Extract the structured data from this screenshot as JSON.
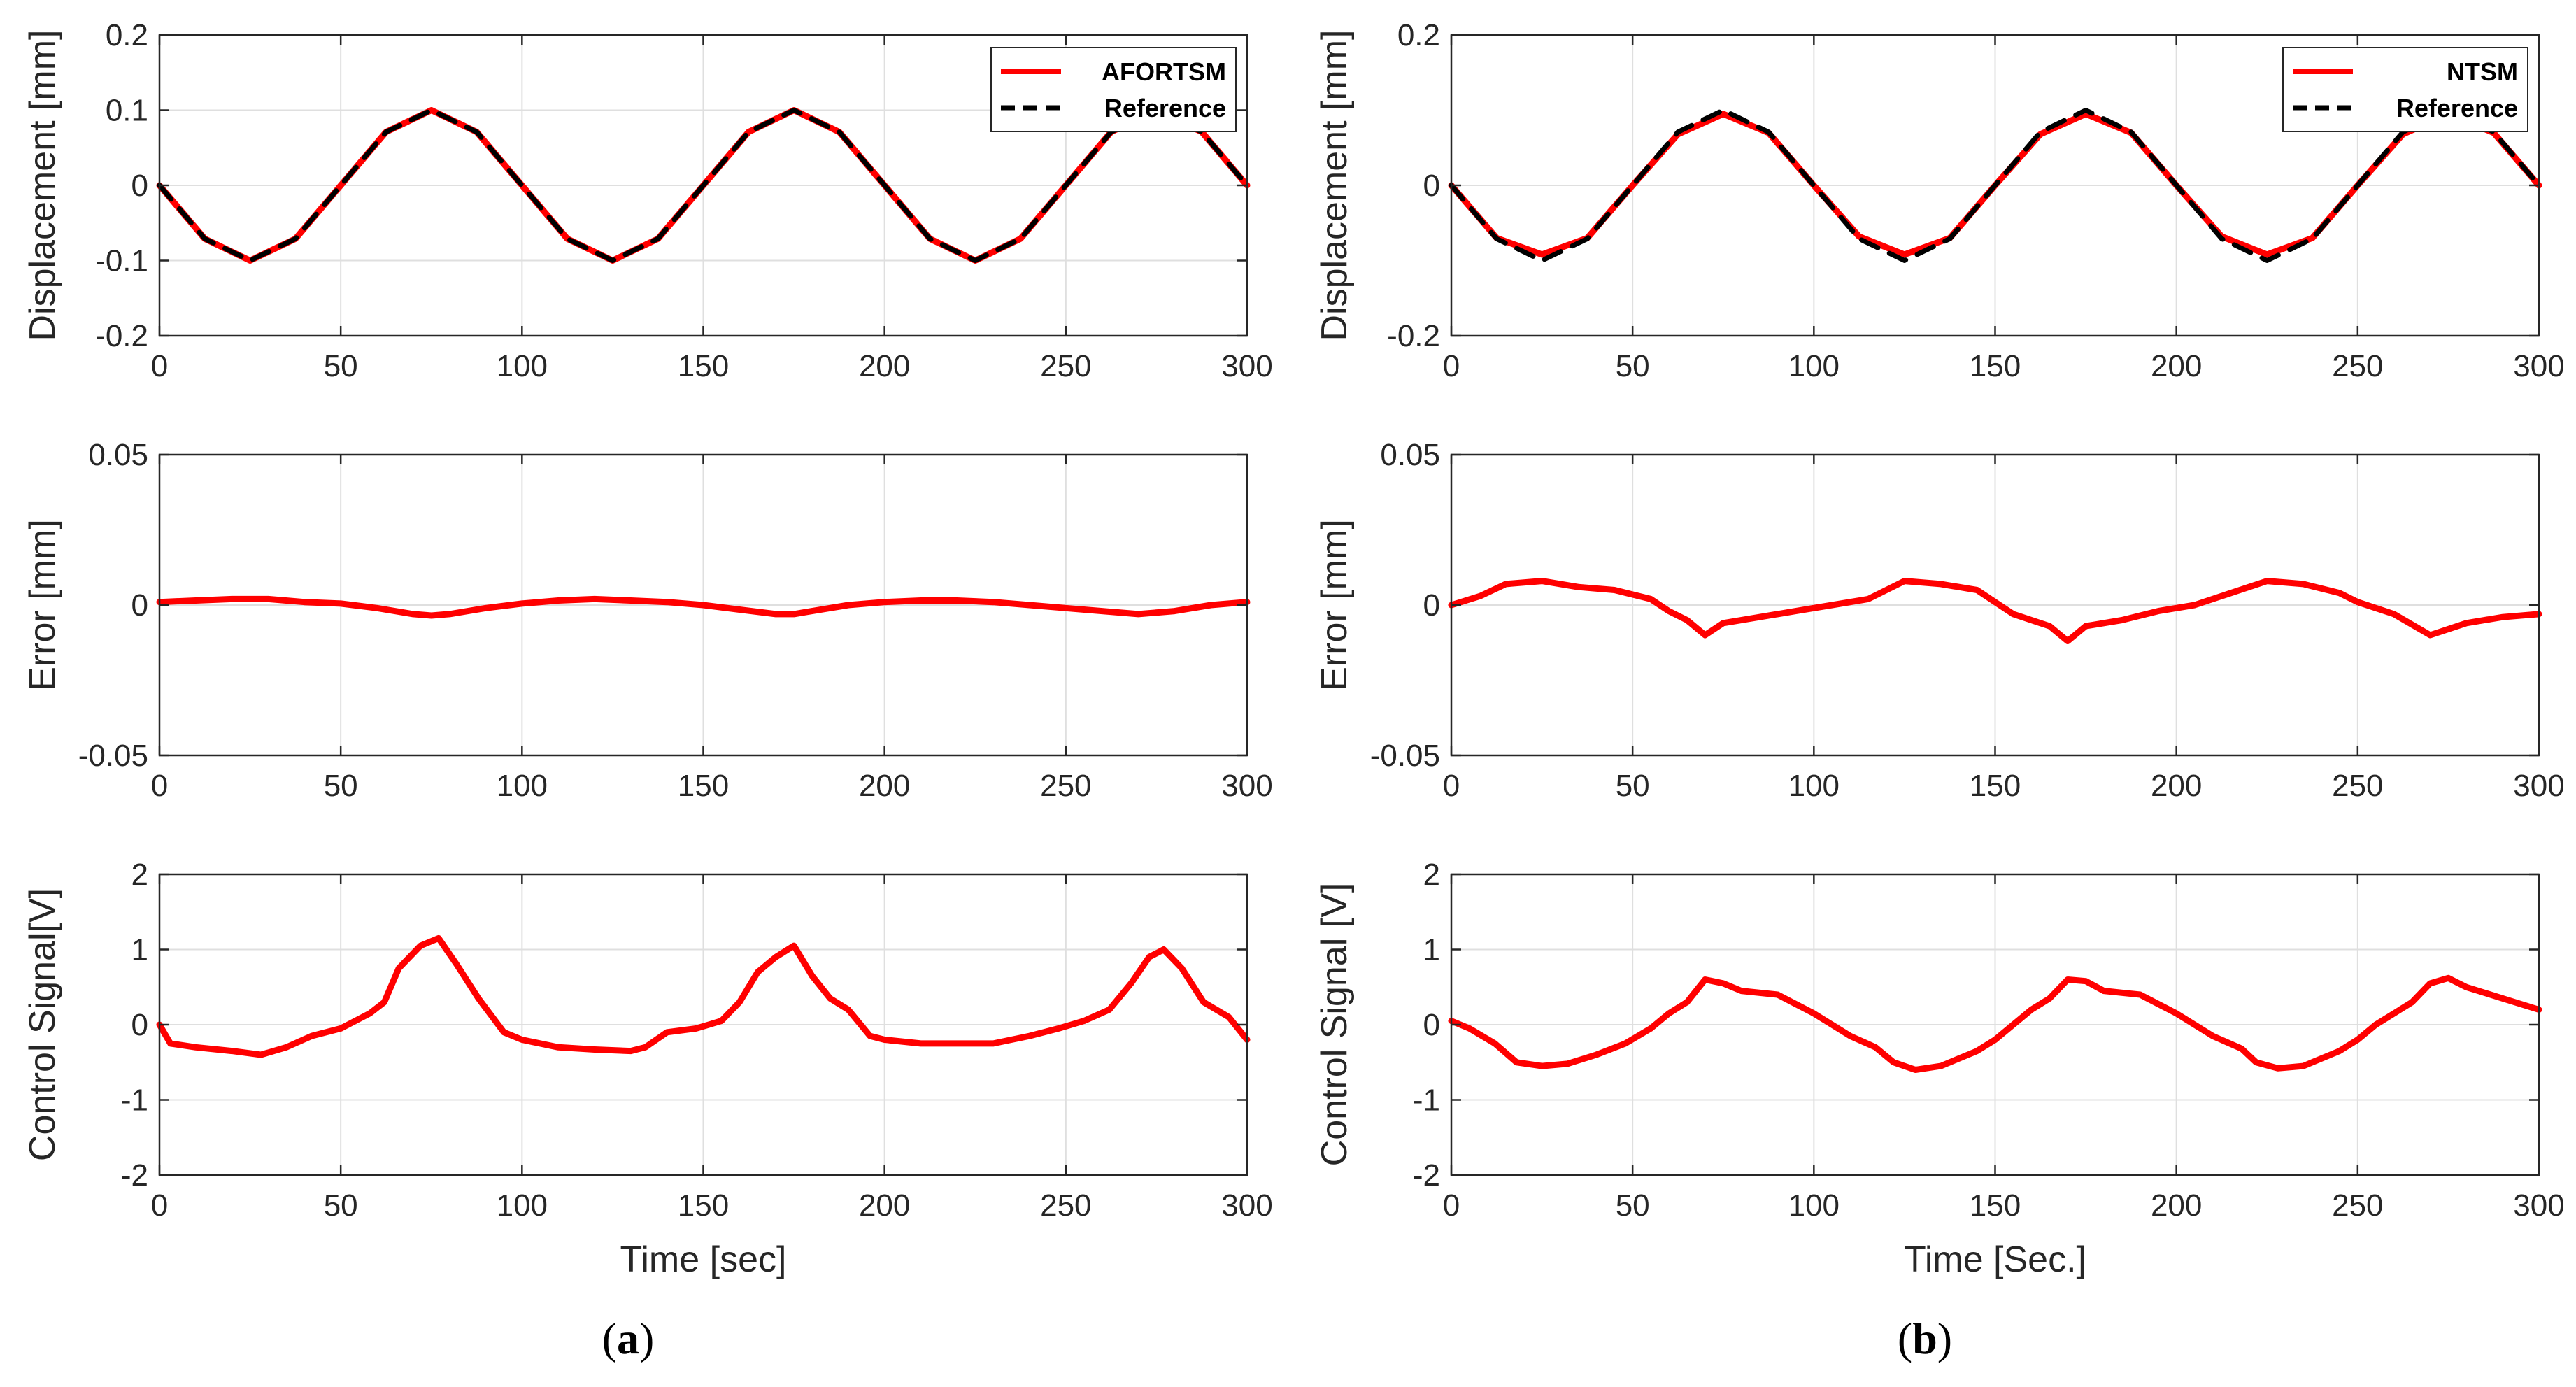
{
  "figure": {
    "panel_labels": [
      {
        "open": "(",
        "letter": "a",
        "close": ")"
      },
      {
        "open": "(",
        "letter": "b",
        "close": ")"
      }
    ]
  },
  "colors": {
    "series": "#ff0000",
    "reference": "#000000",
    "grid": "#dfdfdf",
    "axis": "#262626"
  },
  "chart_data": [
    {
      "id": "a-displacement",
      "type": "line",
      "title": "",
      "xlabel": "",
      "ylabel": "Displacement [mm]",
      "xlim": [
        0,
        300
      ],
      "ylim": [
        -0.2,
        0.2
      ],
      "xticks": [
        0,
        50,
        100,
        150,
        200,
        250,
        300
      ],
      "xtick_labels": [
        "0",
        "50",
        "100",
        "150",
        "200",
        "250",
        "300"
      ],
      "yticks": [
        -0.2,
        -0.1,
        0,
        0.1,
        0.2
      ],
      "ytick_labels": [
        "-0.2",
        "-0.1",
        "0",
        "0.1",
        "0.2"
      ],
      "grid": true,
      "legend": "top-right",
      "series": [
        {
          "name": "AFORTSM",
          "color": "#ff0000",
          "style": "solid",
          "x": [
            0,
            12.5,
            25,
            37.5,
            50,
            62.5,
            75,
            87.5,
            100,
            112.5,
            125,
            137.5,
            150,
            162.5,
            175,
            187.5,
            200,
            212.5,
            225,
            237.5,
            250,
            262.5,
            275,
            287.5,
            300
          ],
          "y": [
            0,
            -0.071,
            -0.1,
            -0.071,
            0,
            0.071,
            0.1,
            0.071,
            0,
            -0.071,
            -0.1,
            -0.071,
            0,
            0.071,
            0.1,
            0.071,
            0,
            -0.071,
            -0.1,
            -0.071,
            0,
            0.071,
            0.1,
            0.071,
            0
          ]
        },
        {
          "name": "Reference",
          "color": "#000000",
          "style": "dashed",
          "x": [
            0,
            12.5,
            25,
            37.5,
            50,
            62.5,
            75,
            87.5,
            100,
            112.5,
            125,
            137.5,
            150,
            162.5,
            175,
            187.5,
            200,
            212.5,
            225,
            237.5,
            250,
            262.5,
            275,
            287.5,
            300
          ],
          "y": [
            0,
            -0.071,
            -0.1,
            -0.071,
            0,
            0.071,
            0.1,
            0.071,
            0,
            -0.071,
            -0.1,
            -0.071,
            0,
            0.071,
            0.1,
            0.071,
            0,
            -0.071,
            -0.1,
            -0.071,
            0,
            0.071,
            0.1,
            0.071,
            0
          ]
        }
      ]
    },
    {
      "id": "b-displacement",
      "type": "line",
      "title": "",
      "xlabel": "",
      "ylabel": "Displacement [mm]",
      "xlim": [
        0,
        300
      ],
      "ylim": [
        -0.2,
        0.2
      ],
      "xticks": [
        0,
        50,
        100,
        150,
        200,
        250,
        300
      ],
      "xtick_labels": [
        "0",
        "50",
        "100",
        "150",
        "200",
        "250",
        "300"
      ],
      "yticks": [
        -0.2,
        0,
        0.2
      ],
      "ytick_labels": [
        "-0.2",
        "0",
        "0.2"
      ],
      "grid": true,
      "legend": "top-right",
      "series": [
        {
          "name": "NTSM",
          "color": "#ff0000",
          "style": "solid",
          "x": [
            0,
            12.5,
            25,
            37.5,
            50,
            62.5,
            75,
            87.5,
            100,
            112.5,
            125,
            137.5,
            150,
            162.5,
            175,
            187.5,
            200,
            212.5,
            225,
            237.5,
            250,
            262.5,
            275,
            287.5,
            300
          ],
          "y": [
            0,
            -0.07,
            -0.092,
            -0.07,
            0,
            0.068,
            0.095,
            0.07,
            0,
            -0.068,
            -0.092,
            -0.07,
            0,
            0.068,
            0.095,
            0.07,
            0,
            -0.068,
            -0.092,
            -0.07,
            0,
            0.068,
            0.095,
            0.07,
            0
          ]
        },
        {
          "name": "Reference",
          "color": "#000000",
          "style": "dashed",
          "x": [
            0,
            12.5,
            25,
            37.5,
            50,
            62.5,
            75,
            87.5,
            100,
            112.5,
            125,
            137.5,
            150,
            162.5,
            175,
            187.5,
            200,
            212.5,
            225,
            237.5,
            250,
            262.5,
            275,
            287.5,
            300
          ],
          "y": [
            0,
            -0.071,
            -0.1,
            -0.071,
            0,
            0.071,
            0.1,
            0.071,
            0,
            -0.071,
            -0.1,
            -0.071,
            0,
            0.071,
            0.1,
            0.071,
            0,
            -0.071,
            -0.1,
            -0.071,
            0,
            0.071,
            0.1,
            0.071,
            0
          ]
        }
      ]
    },
    {
      "id": "a-error",
      "type": "line",
      "title": "",
      "xlabel": "",
      "ylabel": "Error [mm]",
      "xlim": [
        0,
        300
      ],
      "ylim": [
        -0.05,
        0.05
      ],
      "xticks": [
        0,
        50,
        100,
        150,
        200,
        250,
        300
      ],
      "xtick_labels": [
        "0",
        "50",
        "100",
        "150",
        "200",
        "250",
        "300"
      ],
      "yticks": [
        -0.05,
        0,
        0.05
      ],
      "ytick_labels": [
        "-0.05",
        "0",
        "0.05"
      ],
      "grid": true,
      "legend": "none",
      "series": [
        {
          "name": "",
          "color": "#ff0000",
          "style": "solid",
          "x": [
            0,
            10,
            20,
            30,
            40,
            50,
            60,
            70,
            75,
            80,
            90,
            100,
            110,
            120,
            130,
            140,
            150,
            160,
            170,
            175,
            180,
            190,
            200,
            210,
            220,
            230,
            240,
            250,
            260,
            270,
            280,
            290,
            300
          ],
          "y": [
            0.001,
            0.0015,
            0.002,
            0.002,
            0.001,
            0.0005,
            -0.001,
            -0.003,
            -0.0035,
            -0.003,
            -0.001,
            0.0005,
            0.0015,
            0.002,
            0.0015,
            0.001,
            0,
            -0.0015,
            -0.003,
            -0.003,
            -0.002,
            0,
            0.001,
            0.0015,
            0.0015,
            0.001,
            0,
            -0.001,
            -0.002,
            -0.003,
            -0.002,
            0,
            0.001
          ]
        }
      ]
    },
    {
      "id": "b-error",
      "type": "line",
      "title": "",
      "xlabel": "",
      "ylabel": "Error [mm]",
      "xlim": [
        0,
        300
      ],
      "ylim": [
        -0.05,
        0.05
      ],
      "xticks": [
        0,
        50,
        100,
        150,
        200,
        250,
        300
      ],
      "xtick_labels": [
        "0",
        "50",
        "100",
        "150",
        "200",
        "250",
        "300"
      ],
      "yticks": [
        -0.05,
        0,
        0.05
      ],
      "ytick_labels": [
        "-0.05",
        "0",
        "0.05"
      ],
      "grid": true,
      "legend": "none",
      "series": [
        {
          "name": "",
          "color": "#ff0000",
          "style": "solid",
          "x": [
            0,
            8,
            15,
            25,
            35,
            45,
            55,
            60,
            65,
            70,
            75,
            85,
            95,
            105,
            115,
            125,
            135,
            145,
            150,
            155,
            165,
            170,
            175,
            185,
            195,
            205,
            215,
            225,
            235,
            245,
            250,
            260,
            270,
            280,
            290,
            300
          ],
          "y": [
            0,
            0.003,
            0.007,
            0.008,
            0.006,
            0.005,
            0.002,
            -0.002,
            -0.005,
            -0.01,
            -0.006,
            -0.004,
            -0.002,
            0,
            0.002,
            0.008,
            0.007,
            0.005,
            0.001,
            -0.003,
            -0.007,
            -0.012,
            -0.007,
            -0.005,
            -0.002,
            0,
            0.004,
            0.008,
            0.007,
            0.004,
            0.001,
            -0.003,
            -0.01,
            -0.006,
            -0.004,
            -0.003
          ]
        }
      ]
    },
    {
      "id": "a-control",
      "type": "line",
      "title": "",
      "xlabel": "Time [sec]",
      "ylabel": "Control Signal[V]",
      "xlim": [
        0,
        300
      ],
      "ylim": [
        -2,
        2
      ],
      "xticks": [
        0,
        50,
        100,
        150,
        200,
        250,
        300
      ],
      "xtick_labels": [
        "0",
        "50",
        "100",
        "150",
        "200",
        "250",
        "300"
      ],
      "yticks": [
        -2,
        -1,
        0,
        1,
        2
      ],
      "ytick_labels": [
        "-2",
        "-1",
        "0",
        "1",
        "2"
      ],
      "grid": true,
      "legend": "none",
      "series": [
        {
          "name": "",
          "color": "#ff0000",
          "style": "solid",
          "x": [
            0,
            3,
            10,
            20,
            28,
            35,
            42,
            50,
            58,
            62,
            66,
            72,
            77,
            82,
            88,
            95,
            100,
            110,
            120,
            130,
            134,
            140,
            148,
            155,
            160,
            165,
            170,
            175,
            180,
            185,
            190,
            196,
            200,
            210,
            220,
            230,
            240,
            248,
            255,
            262,
            268,
            273,
            277,
            282,
            288,
            295,
            300
          ],
          "y": [
            0,
            -0.25,
            -0.3,
            -0.35,
            -0.4,
            -0.3,
            -0.15,
            -0.05,
            0.15,
            0.3,
            0.75,
            1.05,
            1.15,
            0.8,
            0.35,
            -0.1,
            -0.2,
            -0.3,
            -0.33,
            -0.35,
            -0.3,
            -0.1,
            -0.05,
            0.05,
            0.3,
            0.7,
            0.9,
            1.05,
            0.65,
            0.35,
            0.2,
            -0.15,
            -0.2,
            -0.25,
            -0.25,
            -0.25,
            -0.15,
            -0.05,
            0.05,
            0.2,
            0.55,
            0.9,
            1.0,
            0.75,
            0.3,
            0.1,
            -0.2
          ]
        }
      ]
    },
    {
      "id": "b-control",
      "type": "line",
      "title": "",
      "xlabel": "Time [Sec.]",
      "ylabel": "Control Signal [V]",
      "xlim": [
        0,
        300
      ],
      "ylim": [
        -2,
        2
      ],
      "xticks": [
        0,
        50,
        100,
        150,
        200,
        250,
        300
      ],
      "xtick_labels": [
        "0",
        "50",
        "100",
        "150",
        "200",
        "250",
        "300"
      ],
      "yticks": [
        -2,
        -1,
        0,
        1,
        2
      ],
      "ytick_labels": [
        "-2",
        "-1",
        "0",
        "1",
        "2"
      ],
      "grid": true,
      "legend": "none",
      "series": [
        {
          "name": "",
          "color": "#ff0000",
          "style": "solid",
          "x": [
            0,
            5,
            12,
            18,
            25,
            32,
            40,
            48,
            55,
            60,
            65,
            70,
            75,
            80,
            90,
            100,
            110,
            117,
            122,
            128,
            135,
            145,
            150,
            155,
            160,
            165,
            170,
            175,
            180,
            190,
            200,
            210,
            218,
            222,
            228,
            235,
            245,
            250,
            255,
            260,
            265,
            270,
            275,
            280,
            290,
            300
          ],
          "y": [
            0.05,
            -0.05,
            -0.25,
            -0.5,
            -0.55,
            -0.52,
            -0.4,
            -0.25,
            -0.05,
            0.15,
            0.3,
            0.6,
            0.55,
            0.45,
            0.4,
            0.15,
            -0.15,
            -0.3,
            -0.5,
            -0.6,
            -0.55,
            -0.35,
            -0.2,
            0.0,
            0.2,
            0.35,
            0.6,
            0.58,
            0.45,
            0.4,
            0.15,
            -0.15,
            -0.32,
            -0.5,
            -0.58,
            -0.55,
            -0.35,
            -0.2,
            0.0,
            0.15,
            0.3,
            0.55,
            0.62,
            0.5,
            0.35,
            0.2
          ]
        }
      ]
    }
  ]
}
